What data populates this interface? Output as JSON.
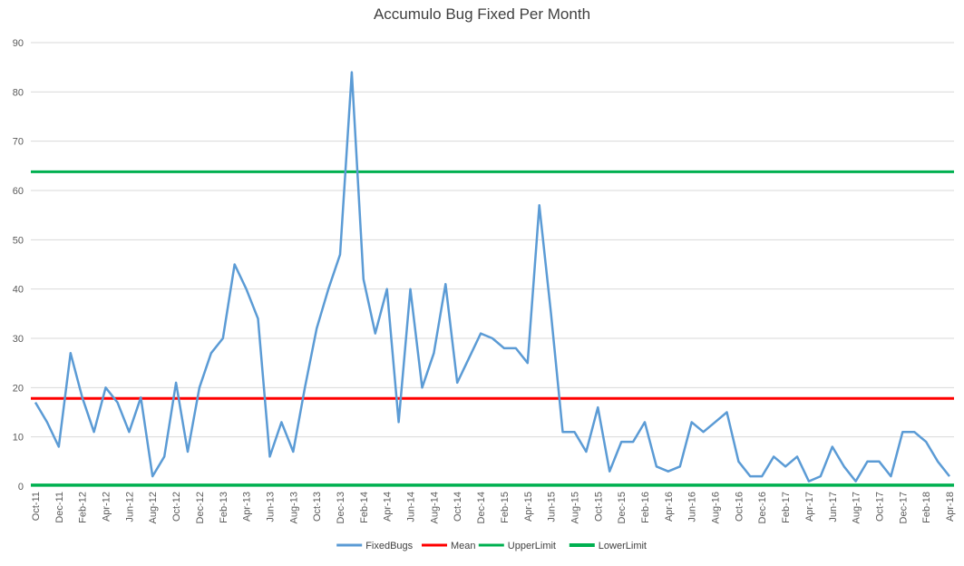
{
  "chart_data": {
    "type": "line",
    "title": "Accumulo Bug Fixed Per Month",
    "xlabel": "",
    "ylabel": "",
    "ylim": [
      0,
      90
    ],
    "yticks": [
      0,
      10,
      20,
      30,
      40,
      50,
      60,
      70,
      80,
      90
    ],
    "grid": true,
    "legend_position": "bottom",
    "x": [
      "Oct-11",
      "Nov-11",
      "Dec-11",
      "Jan-12",
      "Feb-12",
      "Mar-12",
      "Apr-12",
      "May-12",
      "Jun-12",
      "Jul-12",
      "Aug-12",
      "Sep-12",
      "Oct-12",
      "Nov-12",
      "Dec-12",
      "Jan-13",
      "Feb-13",
      "Mar-13",
      "Apr-13",
      "May-13",
      "Jun-13",
      "Jul-13",
      "Aug-13",
      "Sep-13",
      "Oct-13",
      "Nov-13",
      "Dec-13",
      "Jan-14",
      "Feb-14",
      "Mar-14",
      "Apr-14",
      "May-14",
      "Jun-14",
      "Jul-14",
      "Aug-14",
      "Sep-14",
      "Oct-14",
      "Nov-14",
      "Dec-14",
      "Jan-15",
      "Feb-15",
      "Mar-15",
      "Apr-15",
      "May-15",
      "Jun-15",
      "Jul-15",
      "Aug-15",
      "Sep-15",
      "Oct-15",
      "Nov-15",
      "Dec-15",
      "Jan-16",
      "Feb-16",
      "Mar-16",
      "Apr-16",
      "May-16",
      "Jun-16",
      "Jul-16",
      "Aug-16",
      "Sep-16",
      "Oct-16",
      "Nov-16",
      "Dec-16",
      "Jan-17",
      "Feb-17",
      "Mar-17",
      "Apr-17",
      "May-17",
      "Jun-17",
      "Jul-17",
      "Aug-17",
      "Sep-17",
      "Oct-17",
      "Nov-17",
      "Dec-17",
      "Jan-18",
      "Feb-18",
      "Mar-18",
      "Apr-18"
    ],
    "x_tick_labels": [
      "Oct-11",
      "Dec-11",
      "Feb-12",
      "Apr-12",
      "Jun-12",
      "Aug-12",
      "Oct-12",
      "Dec-12",
      "Feb-13",
      "Apr-13",
      "Jun-13",
      "Aug-13",
      "Oct-13",
      "Dec-13",
      "Feb-14",
      "Apr-14",
      "Jun-14",
      "Aug-14",
      "Oct-14",
      "Dec-14",
      "Feb-15",
      "Apr-15",
      "Jun-15",
      "Aug-15",
      "Oct-15",
      "Dec-15",
      "Feb-16",
      "Apr-16",
      "Jun-16",
      "Aug-16",
      "Oct-16",
      "Dec-16",
      "Feb-17",
      "Apr-17",
      "Jun-17",
      "Aug-17",
      "Oct-17",
      "Dec-17",
      "Feb-18",
      "Apr-18"
    ],
    "series": [
      {
        "name": "FixedBugs",
        "color": "#5b9bd5",
        "values": [
          17,
          13,
          8,
          27,
          18,
          11,
          20,
          17,
          11,
          18,
          2,
          6,
          21,
          7,
          20,
          27,
          30,
          45,
          40,
          34,
          6,
          13,
          7,
          20,
          32,
          40,
          47,
          84,
          42,
          31,
          40,
          13,
          40,
          20,
          27,
          41,
          21,
          26,
          31,
          30,
          28,
          28,
          25,
          57,
          35,
          11,
          11,
          7,
          16,
          3,
          9,
          9,
          13,
          4,
          3,
          4,
          13,
          11,
          13,
          15,
          5,
          2,
          2,
          6,
          4,
          6,
          1,
          2,
          8,
          4,
          1,
          5,
          5,
          2,
          11,
          11,
          9,
          5,
          2
        ]
      },
      {
        "name": "Mean",
        "color": "#ff0000",
        "constant": 17.8
      },
      {
        "name": "UpperLimit",
        "color": "#00b050",
        "constant": 63.8
      },
      {
        "name": "LowerLimit",
        "color": "#00b050",
        "constant": 0.2
      }
    ]
  }
}
